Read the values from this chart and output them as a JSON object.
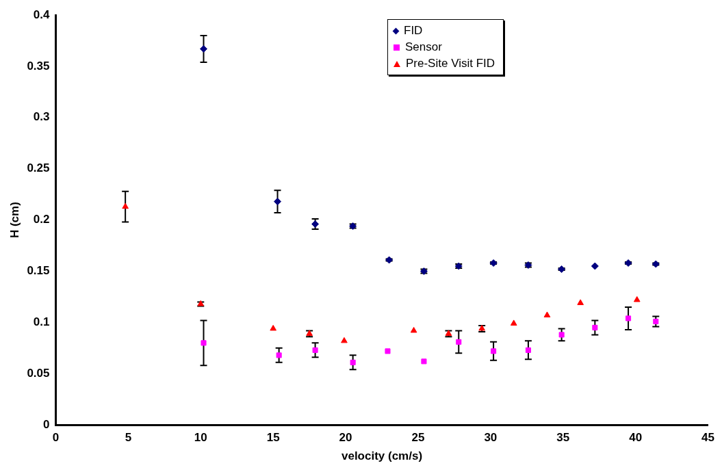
{
  "chart_data": {
    "type": "scatter",
    "xlabel": "velocity (cm/s)",
    "ylabel": "H (cm)",
    "xlim": [
      0,
      45
    ],
    "xticks": [
      0,
      5,
      10,
      15,
      20,
      25,
      30,
      35,
      40,
      45
    ],
    "ylim": [
      0,
      0.4
    ],
    "yticks": [
      0,
      0.05,
      0.1,
      0.15,
      0.2,
      0.25,
      0.3,
      0.35,
      0.4
    ],
    "grid": false,
    "legend": "top right",
    "series": [
      {
        "name": "FID",
        "color": "#000080",
        "marker": "diamond",
        "x": [
          10.2,
          15.3,
          17.9,
          20.5,
          23,
          25.4,
          27.8,
          30.2,
          32.6,
          34.9,
          37.2,
          39.5,
          41.4
        ],
        "values": [
          0.367,
          0.218,
          0.196,
          0.194,
          0.161,
          0.15,
          0.155,
          0.158,
          0.156,
          0.152,
          0.155,
          0.158,
          0.157
        ],
        "errors": [
          0.013,
          0.011,
          0.005,
          0.002,
          0.001,
          0.002,
          0.002,
          0.001,
          0.002,
          0.001,
          null,
          0.001,
          0.001
        ]
      },
      {
        "name": "Sensor",
        "color": "#ff00ff",
        "marker": "square",
        "x": [
          10.2,
          15.4,
          17.9,
          20.5,
          22.9,
          25.4,
          27.8,
          30.2,
          32.6,
          34.9,
          37.2,
          39.5,
          41.4
        ],
        "values": [
          0.08,
          0.068,
          0.073,
          0.061,
          0.072,
          0.062,
          0.081,
          0.072,
          0.073,
          0.088,
          0.095,
          0.104,
          0.101
        ],
        "errors": [
          0.022,
          0.007,
          0.007,
          0.007,
          null,
          null,
          0.011,
          0.009,
          0.009,
          0.006,
          0.007,
          0.011,
          0.005
        ]
      },
      {
        "name": "Pre-Site Visit FID",
        "color": "#ff0000",
        "marker": "triangle",
        "x": [
          4.8,
          10,
          15,
          17.5,
          19.9,
          24.7,
          27.1,
          29.4,
          31.6,
          33.9,
          36.2,
          40.1
        ],
        "values": [
          0.213,
          0.118,
          0.094,
          0.089,
          0.082,
          0.092,
          0.089,
          0.094,
          0.099,
          0.107,
          0.119,
          0.122
        ],
        "errors": [
          0.015,
          0.002,
          null,
          0.003,
          null,
          null,
          0.003,
          0.003,
          null,
          null,
          null,
          null
        ]
      }
    ]
  }
}
